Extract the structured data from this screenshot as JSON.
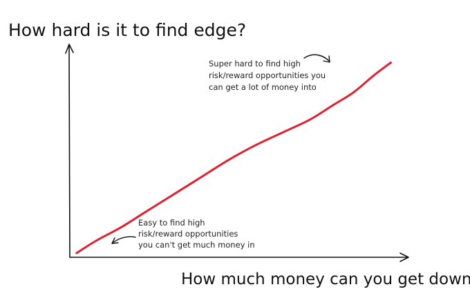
{
  "chart_data": {
    "type": "line",
    "title": "How hard is it to find edge?",
    "xlabel": "How much money can you get down?",
    "ylabel": "",
    "xlim": [
      0,
      100
    ],
    "ylim": [
      0,
      100
    ],
    "grid": false,
    "series": [
      {
        "color": "#e0202e",
        "points": [
          [
            2,
            2
          ],
          [
            8,
            8
          ],
          [
            15,
            14
          ],
          [
            22,
            21
          ],
          [
            30,
            29
          ],
          [
            38,
            37
          ],
          [
            47,
            46
          ],
          [
            55,
            53
          ],
          [
            63,
            59
          ],
          [
            71,
            65
          ],
          [
            78,
            72
          ],
          [
            84,
            78
          ],
          [
            90,
            86
          ],
          [
            95,
            92
          ]
        ]
      }
    ],
    "annotations": [
      {
        "lines": [
          "Super hard to find high",
          "risk/reward opportunities you",
          "can get a lot of money into"
        ]
      },
      {
        "lines": [
          "Easy to find high",
          "risk/reward opportunities",
          "you can't get much money in"
        ]
      }
    ]
  }
}
